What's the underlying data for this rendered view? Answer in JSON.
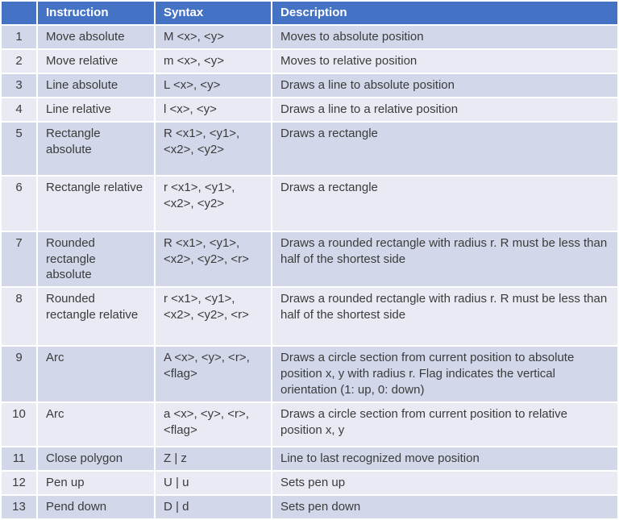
{
  "colors": {
    "header_bg": "#4472C4",
    "header_text": "#FFFFFF",
    "band_dark": "#D2D8EA",
    "band_light": "#E9EBF4",
    "body_text": "#3B3B3B",
    "gridline": "#FFFFFF"
  },
  "table": {
    "columns": {
      "num": "",
      "instruction": "Instruction",
      "syntax": "Syntax",
      "description": "Description"
    },
    "rows": [
      {
        "num": "1",
        "instruction": "Move absolute",
        "syntax": "M <x>, <y>",
        "description": "Moves to absolute position"
      },
      {
        "num": "2",
        "instruction": "Move relative",
        "syntax": "m <x>, <y>",
        "description": "Moves to relative position"
      },
      {
        "num": "3",
        "instruction": "Line absolute",
        "syntax": "L <x>, <y>",
        "description": "Draws a line to absolute position"
      },
      {
        "num": "4",
        "instruction": "Line relative",
        "syntax": "l <x>, <y>",
        "description": "Draws a line to a relative position"
      },
      {
        "num": "5",
        "instruction": "Rectangle\nabsolute",
        "syntax": "R <x1>, <y1>,\n<x2>, <y2>",
        "description": "Draws a rectangle"
      },
      {
        "num": "6",
        "instruction": "Rectangle relative",
        "syntax": "r <x1>, <y1>,\n<x2>, <y2>",
        "description": "Draws a rectangle"
      },
      {
        "num": "7",
        "instruction": "Rounded\nrectangle\nabsolute",
        "syntax": "R <x1>, <y1>,\n<x2>, <y2>, <r>",
        "description": "Draws a rounded rectangle with radius r. R must be less than half of the shortest side"
      },
      {
        "num": "8",
        "instruction": "Rounded\nrectangle relative",
        "syntax": "r <x1>, <y1>,\n<x2>, <y2>, <r>",
        "description": "Draws a rounded rectangle with radius r. R must be less than half of the shortest side"
      },
      {
        "num": "9",
        "instruction": "Arc",
        "syntax": "A <x>, <y>, <r>,\n<flag>",
        "description": "Draws a circle section from current position to absolute position x, y with radius r. Flag indicates the vertical orientation (1: up, 0: down)"
      },
      {
        "num": "10",
        "instruction": "Arc",
        "syntax": "a <x>, <y>, <r>,\n<flag>",
        "description": "Draws a circle section from current position to relative position x, y"
      },
      {
        "num": "11",
        "instruction": "Close polygon",
        "syntax": "Z | z",
        "description": "Line to last recognized move position"
      },
      {
        "num": "12",
        "instruction": "Pen up",
        "syntax": "U | u",
        "description": "Sets pen up"
      },
      {
        "num": "13",
        "instruction": "Pend down",
        "syntax": "D | d",
        "description": "Sets pen down"
      }
    ]
  }
}
